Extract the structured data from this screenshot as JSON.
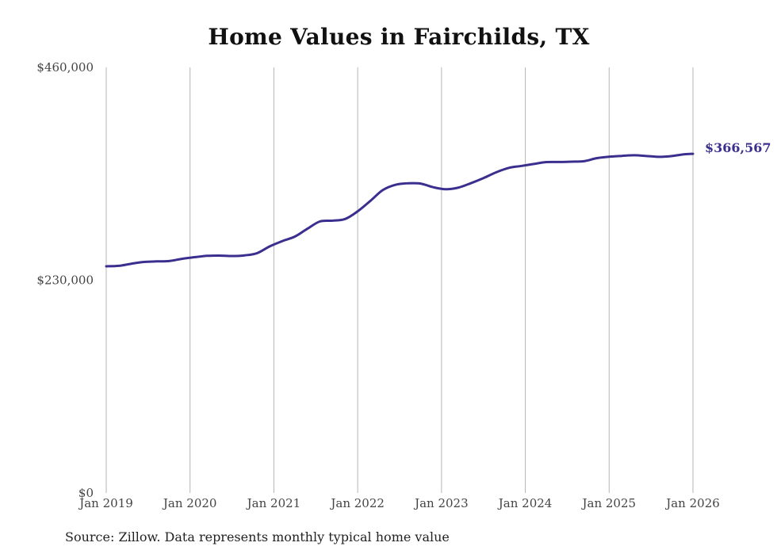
{
  "chart_data": {
    "type": "line",
    "title": "Home Values in Fairchilds, TX",
    "source": "Source: Zillow. Data represents monthly typical home value",
    "ylim": [
      0,
      460000
    ],
    "yticks": [
      0,
      230000,
      460000
    ],
    "ytick_labels": [
      "$0",
      "$230,000",
      "$460,000"
    ],
    "xlim": [
      2019.0,
      2026.0
    ],
    "xticks": [
      2019,
      2020,
      2021,
      2022,
      2023,
      2024,
      2025,
      2026
    ],
    "xtick_labels": [
      "Jan 2019",
      "Jan 2020",
      "Jan 2021",
      "Jan 2022",
      "Jan 2023",
      "Jan 2024",
      "Jan 2025",
      "Jan 2026"
    ],
    "grid": "vertical",
    "line_color": "#3a2f8f",
    "end_label": "$366,567",
    "series": [
      {
        "name": "Typical home value",
        "x": [
          2019.0,
          2019.15,
          2019.3,
          2019.45,
          2019.6,
          2019.75,
          2019.9,
          2020.05,
          2020.2,
          2020.35,
          2020.5,
          2020.65,
          2020.8,
          2020.95,
          2021.1,
          2021.25,
          2021.4,
          2021.55,
          2021.7,
          2021.85,
          2022.0,
          2022.15,
          2022.3,
          2022.45,
          2022.6,
          2022.75,
          2022.9,
          2023.05,
          2023.2,
          2023.35,
          2023.5,
          2023.65,
          2023.8,
          2023.95,
          2024.1,
          2024.25,
          2024.4,
          2024.55,
          2024.7,
          2024.85,
          2025.0,
          2025.15,
          2025.3,
          2025.45,
          2025.6,
          2025.75,
          2025.9,
          2026.0
        ],
        "y": [
          245000,
          245500,
          247800,
          249700,
          250300,
          250700,
          253000,
          254800,
          256300,
          256600,
          256100,
          256800,
          259200,
          266500,
          272200,
          277100,
          285600,
          293500,
          294300,
          296100,
          304400,
          315600,
          327400,
          333100,
          334700,
          334400,
          330500,
          328300,
          330000,
          334800,
          340300,
          346500,
          351300,
          353400,
          355600,
          357600,
          357700,
          358100,
          358600,
          361800,
          363400,
          364300,
          365000,
          364200,
          363300,
          364200,
          366100,
          366567
        ]
      }
    ]
  }
}
